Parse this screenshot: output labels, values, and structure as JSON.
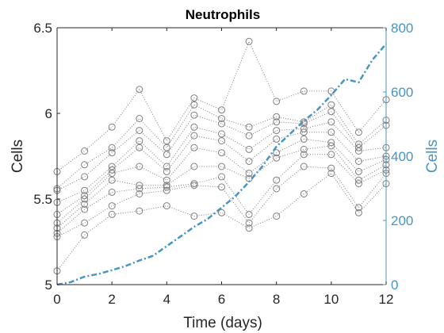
{
  "chart_data": {
    "type": "line",
    "title": "Neutrophils",
    "xlabel": "Time (days)",
    "ylabel_left": "Cells",
    "ylabel_right": "Cells",
    "x_ticks": [
      "0",
      "2",
      "4",
      "6",
      "8",
      "10",
      "12"
    ],
    "y_left_ticks": [
      "5",
      "5.5",
      "6",
      "6.5"
    ],
    "y_right_ticks": [
      "0",
      "200",
      "400",
      "600",
      "800"
    ],
    "xlim": [
      0,
      12
    ],
    "ylim_left": [
      5,
      6.5
    ],
    "ylim_right": [
      0,
      800
    ],
    "colors": {
      "samples": "#7f7f7f",
      "mean": "#4795c2",
      "axis": "#262626"
    },
    "x": [
      0,
      1,
      2,
      3,
      4,
      5,
      6,
      7,
      8,
      9,
      10,
      11,
      12
    ],
    "sample_series": [
      {
        "values": [
          5.66,
          5.78,
          5.92,
          6.14,
          5.84,
          6.09,
          6.02,
          6.42,
          6.07,
          6.13,
          6.13,
          5.89,
          6.08
        ]
      },
      {
        "values": [
          5.56,
          5.7,
          5.8,
          5.97,
          5.8,
          6.05,
          5.97,
          5.92,
          5.98,
          5.95,
          6.05,
          5.82,
          5.96
        ]
      },
      {
        "values": [
          5.55,
          5.63,
          5.77,
          5.9,
          5.76,
          5.99,
          5.94,
          5.87,
          5.95,
          5.94,
          6.01,
          5.8,
          5.93
        ]
      },
      {
        "values": [
          5.48,
          5.55,
          5.69,
          5.84,
          5.69,
          5.92,
          5.88,
          5.79,
          5.9,
          5.91,
          5.95,
          5.78,
          5.8
        ]
      },
      {
        "values": [
          5.41,
          5.52,
          5.67,
          5.8,
          5.66,
          5.87,
          5.84,
          5.72,
          5.85,
          5.89,
          5.89,
          5.72,
          5.75
        ]
      },
      {
        "values": [
          5.36,
          5.5,
          5.65,
          5.69,
          5.61,
          5.8,
          5.77,
          5.65,
          5.77,
          5.85,
          5.83,
          5.66,
          5.73
        ]
      },
      {
        "values": [
          5.33,
          5.47,
          5.61,
          5.58,
          5.58,
          5.69,
          5.69,
          5.62,
          5.74,
          5.79,
          5.81,
          5.61,
          5.7
        ]
      },
      {
        "values": [
          5.3,
          5.44,
          5.54,
          5.56,
          5.57,
          5.59,
          5.63,
          5.41,
          5.61,
          5.76,
          5.76,
          5.59,
          5.67
        ]
      },
      {
        "values": [
          5.28,
          5.36,
          5.46,
          5.53,
          5.55,
          5.58,
          5.57,
          5.36,
          5.56,
          5.69,
          5.68,
          5.45,
          5.65
        ]
      },
      {
        "values": [
          5.08,
          5.29,
          5.41,
          5.43,
          5.46,
          5.4,
          5.42,
          5.33,
          5.4,
          5.53,
          5.65,
          5.42,
          5.59
        ]
      }
    ],
    "mean_series": {
      "x": [
        0,
        0.5,
        1,
        1.5,
        2,
        2.5,
        3,
        3.5,
        4,
        4.5,
        5,
        5.5,
        6,
        6.5,
        7,
        7.5,
        8,
        8.5,
        9,
        9.5,
        10,
        10.5,
        11,
        11.5,
        12
      ],
      "values": [
        0,
        8,
        25,
        33,
        45,
        58,
        75,
        90,
        120,
        150,
        180,
        205,
        240,
        275,
        320,
        370,
        430,
        470,
        510,
        545,
        590,
        640,
        630,
        700,
        750
      ]
    }
  }
}
